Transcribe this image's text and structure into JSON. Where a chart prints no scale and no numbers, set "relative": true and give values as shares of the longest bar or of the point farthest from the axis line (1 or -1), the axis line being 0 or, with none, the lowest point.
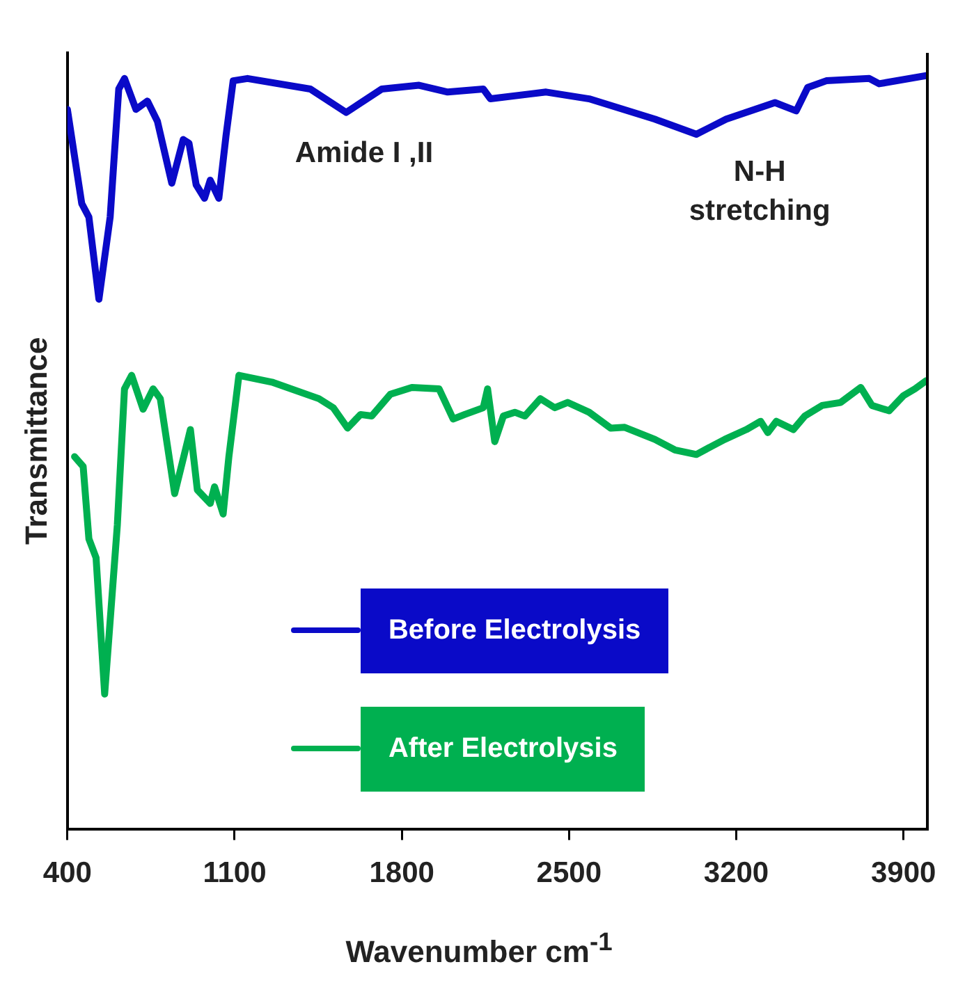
{
  "chart_data": {
    "type": "line",
    "relative": true,
    "xlabel": "Wavenumber cm$^{-1}$",
    "ylabel": "Transmittance",
    "xlim": [
      400,
      4000
    ],
    "xticks": [
      400,
      1100,
      1800,
      2500,
      3200,
      3900
    ],
    "grid": false,
    "legend": "bottom",
    "marker": "none",
    "line_style": "solid",
    "annotations": [
      "Amide I ,II",
      "N-H\nstretching"
    ],
    "series": [
      {
        "name": "Before Electrolysis",
        "color": "#0a0ac8",
        "x": [
          400,
          460,
          490,
          532,
          579,
          615,
          639,
          687,
          735,
          777,
          837,
          885,
          909,
          939,
          974,
          998,
          1034,
          1064,
          1094,
          1154,
          1417,
          1567,
          1716,
          1872,
          1992,
          2141,
          2171,
          2404,
          2584,
          2859,
          3033,
          3158,
          3362,
          3451,
          3499,
          3577,
          3757,
          3798,
          4000
        ],
        "values": [
          0.955,
          0.83,
          0.812,
          0.703,
          0.812,
          0.982,
          0.996,
          0.955,
          0.966,
          0.939,
          0.857,
          0.915,
          0.91,
          0.855,
          0.837,
          0.861,
          0.837,
          0.92,
          0.993,
          0.996,
          0.982,
          0.951,
          0.982,
          0.987,
          0.978,
          0.982,
          0.969,
          0.978,
          0.969,
          0.942,
          0.922,
          0.942,
          0.964,
          0.953,
          0.984,
          0.993,
          0.996,
          0.989,
          1
        ]
      },
      {
        "name": "After Electrolysis",
        "color": "#00b050",
        "x": [
          430,
          466,
          490,
          520,
          556,
          609,
          639,
          669,
          717,
          759,
          789,
          849,
          915,
          944,
          998,
          1016,
          1052,
          1076,
          1118,
          1256,
          1453,
          1513,
          1573,
          1627,
          1674,
          1752,
          1842,
          1956,
          2015,
          2063,
          2141,
          2159,
          2189,
          2225,
          2273,
          2315,
          2380,
          2440,
          2494,
          2584,
          2674,
          2733,
          2859,
          2943,
          3033,
          3098,
          3152,
          3242,
          3302,
          3332,
          3368,
          3439,
          3487,
          3559,
          3637,
          3721,
          3768,
          3840,
          3900,
          3948,
          3996
        ],
        "values": [
          0.494,
          0.481,
          0.385,
          0.36,
          0.179,
          0.403,
          0.584,
          0.602,
          0.557,
          0.584,
          0.571,
          0.445,
          0.53,
          0.45,
          0.432,
          0.454,
          0.418,
          0.494,
          0.602,
          0.593,
          0.571,
          0.559,
          0.532,
          0.55,
          0.548,
          0.577,
          0.586,
          0.584,
          0.544,
          0.55,
          0.559,
          0.584,
          0.514,
          0.548,
          0.553,
          0.548,
          0.571,
          0.559,
          0.566,
          0.553,
          0.532,
          0.533,
          0.517,
          0.503,
          0.497,
          0.508,
          0.517,
          0.53,
          0.541,
          0.526,
          0.541,
          0.53,
          0.548,
          0.562,
          0.566,
          0.586,
          0.562,
          0.555,
          0.575,
          0.584,
          0.595
        ]
      }
    ]
  }
}
